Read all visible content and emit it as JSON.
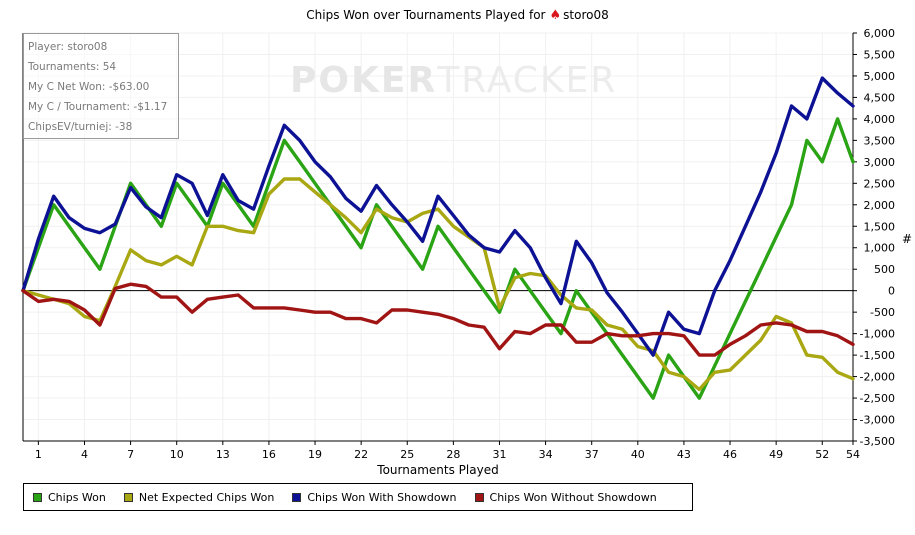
{
  "title": {
    "prefix": "Chips Won over Tournaments Played for",
    "spade_icon": "spade-icon",
    "player": "storo08"
  },
  "watermark": {
    "poker": "POKER",
    "tracker": "TRACKER"
  },
  "info_box": {
    "player": "Player: storo08",
    "tournaments": "Tournaments: 54",
    "net_won": "My C Net Won: -$63.00",
    "per_tournament": "My C / Tournament: -$1.17",
    "chips_ev": "ChipsEV/turniej: -38"
  },
  "colors": {
    "chips_won": "#2aa415",
    "net_expected": "#a9a712",
    "with_showdown": "#0d1294",
    "without_showdown": "#a01414",
    "grid": "#f0f0f0",
    "zero_line": "#000000"
  },
  "chart_data": {
    "type": "line",
    "xlabel": "Tournaments Played",
    "ylabel": "#",
    "xlim": [
      0,
      54
    ],
    "ylim": [
      -3500,
      6000
    ],
    "x_ticks": [
      1,
      4,
      7,
      10,
      13,
      16,
      19,
      22,
      25,
      28,
      31,
      34,
      37,
      40,
      43,
      46,
      49,
      52,
      54
    ],
    "y_ticks": [
      6000,
      5500,
      5000,
      4500,
      4000,
      3500,
      3000,
      2500,
      2000,
      1500,
      1000,
      500,
      0,
      -500,
      -1000,
      -1500,
      -2000,
      -2500,
      -3000,
      -3500
    ],
    "y_tick_labels": [
      "6,000",
      "5,500",
      "5,000",
      "4,500",
      "4,000",
      "3,500",
      "3,000",
      "2,500",
      "2,000",
      "1,500",
      "1,000",
      "500",
      "0",
      "-500",
      "-1,000",
      "-1,500",
      "-2,000",
      "-2,500",
      "-3,000",
      "-3,500"
    ],
    "x": [
      0,
      1,
      2,
      3,
      4,
      5,
      6,
      7,
      8,
      9,
      10,
      11,
      12,
      13,
      14,
      15,
      16,
      17,
      18,
      19,
      20,
      21,
      22,
      23,
      24,
      25,
      26,
      27,
      28,
      29,
      30,
      31,
      32,
      33,
      34,
      35,
      36,
      37,
      38,
      39,
      40,
      41,
      42,
      43,
      44,
      45,
      46,
      47,
      48,
      49,
      50,
      51,
      52,
      53,
      54
    ],
    "series": [
      {
        "name": "Chips Won",
        "color_key": "chips_won",
        "values": [
          0,
          1000,
          2000,
          1500,
          1000,
          500,
          1500,
          2500,
          2000,
          1500,
          2500,
          2000,
          1500,
          2500,
          2000,
          1500,
          2500,
          3500,
          3000,
          2500,
          2000,
          1500,
          1000,
          2000,
          1500,
          1000,
          500,
          1500,
          1000,
          500,
          0,
          -500,
          500,
          0,
          -500,
          -1000,
          0,
          -500,
          -1000,
          -1500,
          -2000,
          -2500,
          -1500,
          -2000,
          -2500,
          -1750,
          -1000,
          -250,
          500,
          1250,
          2000,
          3500,
          3000,
          4000,
          3000
        ]
      },
      {
        "name": "Net Expected Chips Won",
        "color_key": "net_expected",
        "values": [
          0,
          -100,
          -200,
          -300,
          -600,
          -700,
          100,
          950,
          700,
          600,
          800,
          600,
          1500,
          1500,
          1400,
          1350,
          2250,
          2600,
          2600,
          2300,
          2000,
          1700,
          1350,
          1900,
          1700,
          1600,
          1800,
          1900,
          1500,
          1250,
          1000,
          -400,
          300,
          400,
          350,
          -100,
          -400,
          -450,
          -800,
          -900,
          -1300,
          -1400,
          -1900,
          -2000,
          -2300,
          -1900,
          -1850,
          -1500,
          -1150,
          -600,
          -750,
          -1500,
          -1550,
          -1900,
          -2050
        ]
      },
      {
        "name": "Chips Won With Showdown",
        "color_key": "with_showdown",
        "values": [
          0,
          1200,
          2200,
          1700,
          1450,
          1350,
          1550,
          2400,
          1950,
          1700,
          2700,
          2500,
          1750,
          2700,
          2100,
          1900,
          2900,
          3850,
          3500,
          3000,
          2650,
          2150,
          1850,
          2450,
          2000,
          1600,
          1150,
          2200,
          1750,
          1300,
          1000,
          900,
          1400,
          1000,
          300,
          -300,
          1150,
          650,
          -50,
          -500,
          -1000,
          -1500,
          -500,
          -900,
          -1000,
          0,
          700,
          1500,
          2300,
          3200,
          4300,
          4000,
          4950,
          4600,
          4300
        ]
      },
      {
        "name": "Chips Won Without Showdown",
        "color_key": "without_showdown",
        "values": [
          0,
          -250,
          -200,
          -250,
          -450,
          -800,
          50,
          150,
          100,
          -150,
          -150,
          -500,
          -200,
          -150,
          -100,
          -400,
          -400,
          -400,
          -450,
          -500,
          -500,
          -650,
          -650,
          -750,
          -450,
          -450,
          -500,
          -550,
          -650,
          -800,
          -850,
          -1350,
          -950,
          -1000,
          -800,
          -800,
          -1200,
          -1200,
          -1000,
          -1050,
          -1050,
          -1000,
          -1000,
          -1050,
          -1500,
          -1500,
          -1250,
          -1050,
          -800,
          -750,
          -800,
          -950,
          -950,
          -1050,
          -1250
        ]
      }
    ]
  }
}
